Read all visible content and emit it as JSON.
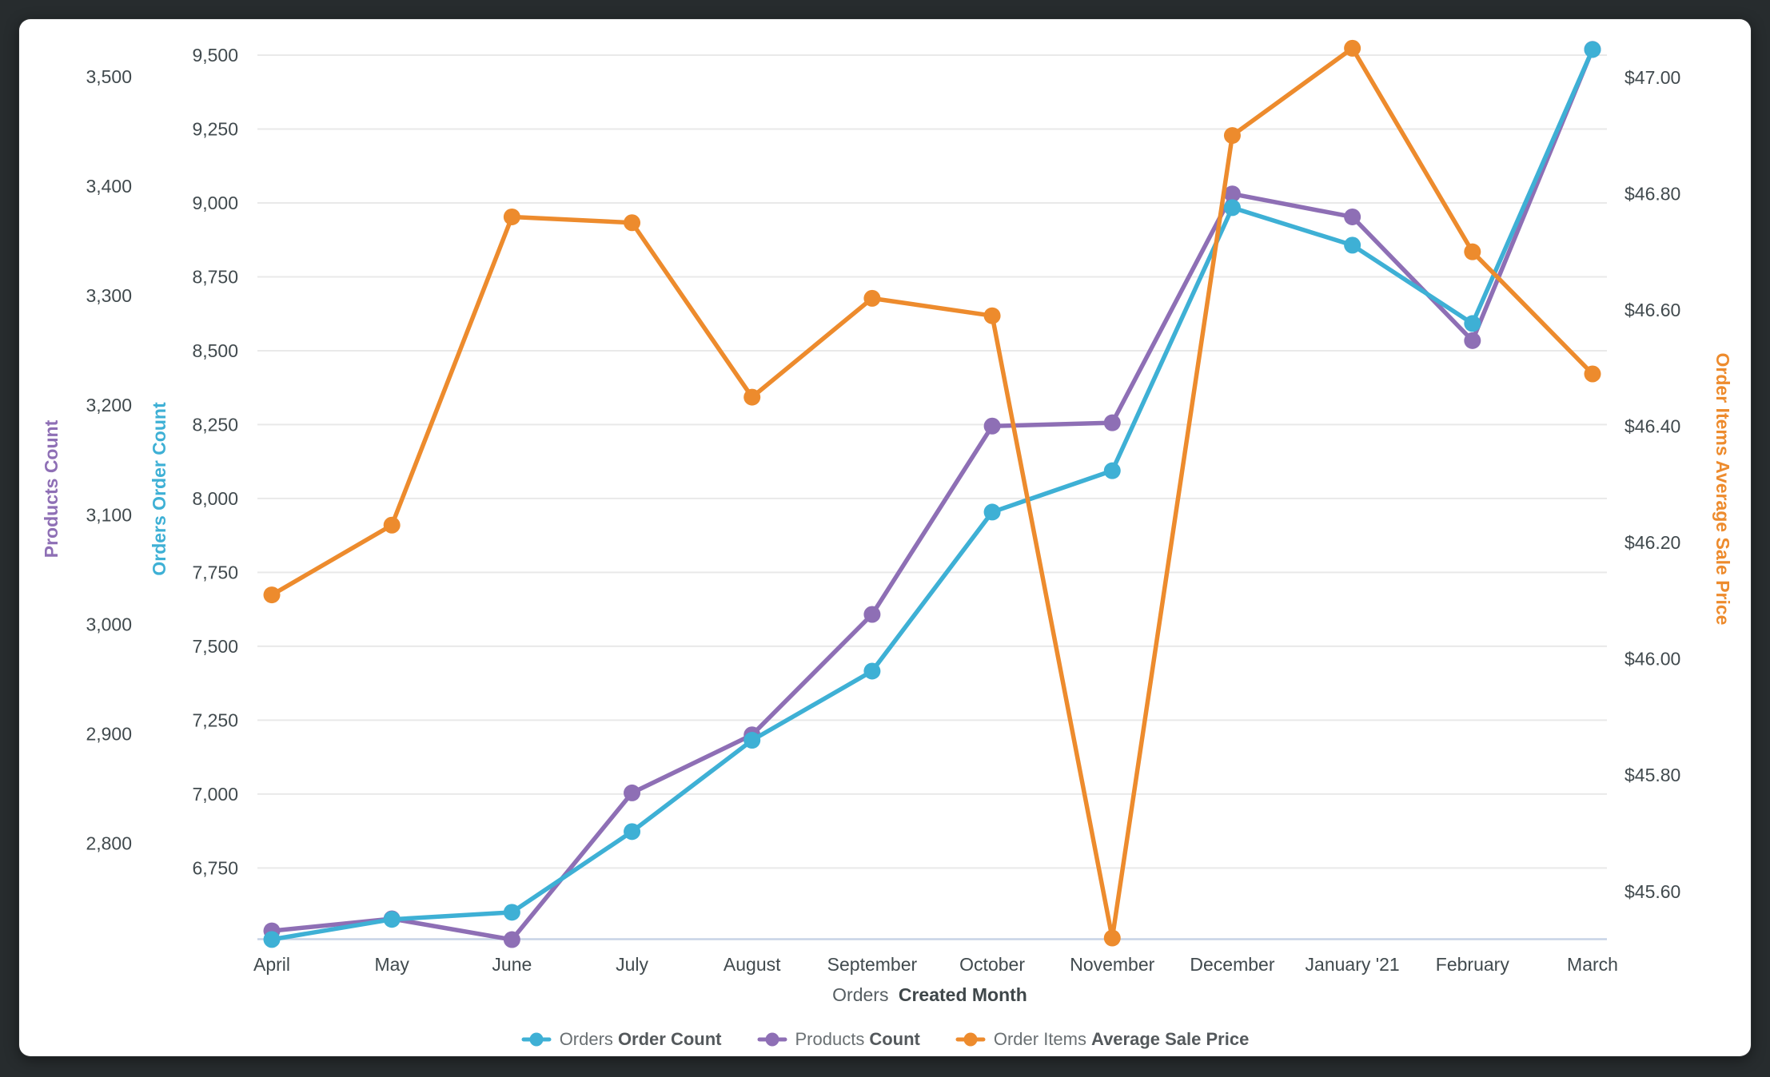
{
  "page": {
    "background": "#272C2E"
  },
  "card": {
    "background": "#FFFFFF"
  },
  "colors": {
    "gridline": "#E9E9E9",
    "baseline": "#C7D3E6",
    "tick_text": "#414A4E",
    "cyan": "#3EB0D5",
    "purple": "#8E6FB5",
    "orange": "#ED8B2D"
  },
  "chart_data": {
    "type": "line",
    "grid": true,
    "legend_position": "bottom",
    "x_axis": {
      "title_regular": "Orders",
      "title_bold": "Created Month",
      "categories": [
        "April",
        "May",
        "June",
        "July",
        "August",
        "September",
        "October",
        "November",
        "December",
        "January '21",
        "February",
        "March"
      ]
    },
    "y_axes": [
      {
        "id": "products",
        "label": "Products Count",
        "color": "#8E6FB5",
        "side": "left",
        "tick_values": [
          2800,
          2900,
          3000,
          3100,
          3200,
          3300,
          3400,
          3500
        ],
        "tick_labels": [
          "2,800",
          "2,900",
          "3,000",
          "3,100",
          "3,200",
          "3,300",
          "3,400",
          "3,500"
        ],
        "ylim": [
          2712.4,
          3540.9
        ],
        "gridlines": false
      },
      {
        "id": "count",
        "label": "Orders Order Count",
        "color": "#3EB0D5",
        "side": "left",
        "tick_values": [
          6750,
          7000,
          7250,
          7500,
          7750,
          8000,
          8250,
          8500,
          8750,
          9000,
          9250,
          9500
        ],
        "tick_labels": [
          "6,750",
          "7,000",
          "7,250",
          "7,500",
          "7,750",
          "8,000",
          "8,250",
          "8,500",
          "8,750",
          "9,000",
          "9,250",
          "9,500"
        ],
        "ylim": [
          6509,
          9578.4
        ],
        "gridlines": true
      },
      {
        "id": "price",
        "label": "Order Items Average Sale Price",
        "color": "#ED8B2D",
        "side": "right",
        "tick_values": [
          45.6,
          45.8,
          46.0,
          46.2,
          46.4,
          46.6,
          46.8,
          47.0
        ],
        "tick_labels": [
          "$45.60",
          "$45.80",
          "$46.00",
          "$46.20",
          "$46.40",
          "$46.60",
          "$46.80",
          "$47.00"
        ],
        "ylim": [
          45.518,
          47.078
        ],
        "gridlines": false
      }
    ],
    "series": [
      {
        "name_regular": "Orders",
        "name_bold": "Order Count",
        "axis": "count",
        "color": "#3EB0D5",
        "values": [
          6508,
          6576,
          6600,
          6873,
          7182,
          7416,
          7954,
          8094,
          8984,
          8857,
          8592,
          9519
        ]
      },
      {
        "name_regular": "Products",
        "name_bold": "Count",
        "axis": "products",
        "color": "#8E6FB5",
        "values": [
          2720,
          2731,
          2712,
          2846,
          2899,
          3009,
          3181,
          3184,
          3393,
          3372,
          3259,
          3525
        ]
      },
      {
        "name_regular": "Order Items",
        "name_bold": "Average Sale Price",
        "axis": "price",
        "color": "#ED8B2D",
        "values": [
          46.11,
          46.23,
          46.76,
          46.75,
          46.45,
          46.62,
          46.59,
          45.52,
          46.9,
          47.05,
          46.7,
          46.49
        ]
      }
    ]
  }
}
